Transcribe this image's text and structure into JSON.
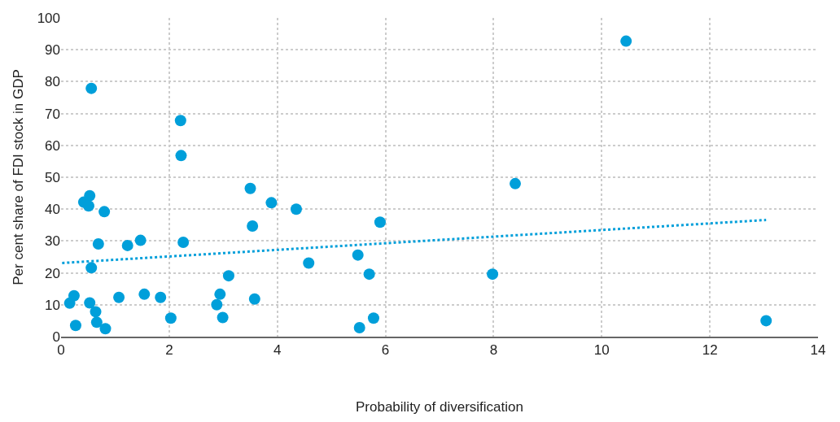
{
  "chart_data": {
    "type": "scatter",
    "xlabel": "Probability of diversification",
    "ylabel": "Per cent share of FDI stock in GDP",
    "xlim": [
      0,
      14
    ],
    "xticks": [
      0,
      2,
      4,
      6,
      8,
      10,
      12,
      14
    ],
    "ylim": [
      0,
      100
    ],
    "yticks": [
      0,
      10,
      20,
      30,
      40,
      50,
      60,
      70,
      80,
      90,
      100
    ],
    "grid": true,
    "legend": false,
    "series": [
      {
        "color": "#009fda",
        "marker": "circle",
        "x": [
          0.16,
          0.24,
          0.27,
          0.42,
          0.53,
          0.51,
          0.56,
          0.56,
          0.53,
          0.64,
          0.66,
          0.69,
          0.8,
          0.82,
          1.07,
          1.23,
          1.47,
          1.54,
          1.84,
          2.03,
          2.21,
          2.22,
          2.26,
          2.88,
          2.94,
          2.99,
          3.1,
          3.5,
          3.54,
          3.58,
          3.89,
          4.35,
          4.58,
          5.49,
          5.52,
          5.7,
          5.78,
          5.9,
          7.98,
          8.4,
          10.45,
          13.04
        ],
        "values": [
          10.5,
          12.8,
          3.5,
          42.2,
          44.2,
          41,
          77.9,
          21.6,
          10.6,
          7.8,
          4.5,
          29.1,
          39.2,
          2.5,
          12.3,
          28.6,
          30.2,
          13.3,
          12.3,
          5.8,
          67.8,
          56.8,
          29.6,
          10,
          13.3,
          6,
          19.1,
          46.5,
          34.7,
          11.8,
          42,
          40,
          23.1,
          25.6,
          2.8,
          19.6,
          5.8,
          35.9,
          19.6,
          48,
          92.7,
          5
        ]
      },
      {
        "type": "line",
        "color": "#009fda",
        "marker": "none",
        "line_style": "dotted",
        "x": [
          0.02,
          13.04
        ],
        "values": [
          23.1,
          36.6
        ]
      }
    ]
  }
}
